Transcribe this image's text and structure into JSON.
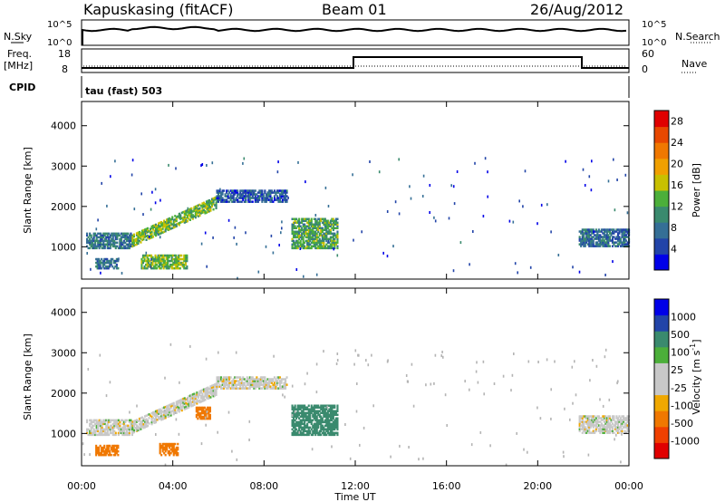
{
  "header": {
    "station": "Kapuskasing (fitACF)",
    "beam": "Beam 01",
    "date": "26/Aug/2012"
  },
  "aux": {
    "nsky_label": "N.Sky",
    "nsky_top_left": "10^5",
    "nsky_bottom_left": "10^0",
    "nsky_top_right": "10^5",
    "nsky_bottom_right": "10^0",
    "nsearch_label": "N.Search",
    "freq_label_1": "Freq.",
    "freq_label_2": "[MHz]",
    "freq_top": "18",
    "freq_bottom": "8",
    "nave_top": "60",
    "nave_bottom": "0",
    "nave_label": "Nave",
    "cpid_label": "CPID",
    "cpid_text": "tau (fast) 503"
  },
  "colors": {
    "power": [
      "#0000e8",
      "#2244a8",
      "#356f96",
      "#3a8a6e",
      "#4caf3a",
      "#c8c000",
      "#f0a000",
      "#f07800",
      "#e84800",
      "#e00000"
    ],
    "velocity": [
      "#e00000",
      "#f04000",
      "#f07800",
      "#f0a800",
      "#c8c8c8",
      "#c8c8c8",
      "#4caf3a",
      "#3a8a6e",
      "#2244a8",
      "#0000e8"
    ],
    "ground": "#b4b4b4"
  },
  "chart_data": [
    {
      "type": "heatmap",
      "name": "power",
      "ylabel": "Slant Range [km]",
      "xlim": [
        0,
        24
      ],
      "ylim": [
        200,
        4600
      ],
      "yticks": [
        "1000",
        "2000",
        "3000",
        "4000"
      ],
      "colorbar": {
        "label": "Power [dB]",
        "ticks": [
          "4",
          "8",
          "12",
          "16",
          "20",
          "24",
          "28"
        ],
        "range": [
          0,
          30
        ]
      },
      "regions": [
        {
          "t0": 0.2,
          "t1": 2.2,
          "r0": 950,
          "r1": 1350,
          "level": 8
        },
        {
          "t0": 2.2,
          "t1": 5.9,
          "r0": 1000,
          "r1": 2250,
          "level": 14,
          "slope": true
        },
        {
          "t0": 5.9,
          "t1": 9.0,
          "r0": 2100,
          "r1": 2400,
          "level": 6
        },
        {
          "t0": 9.2,
          "t1": 11.2,
          "r0": 950,
          "r1": 1700,
          "level": 12
        },
        {
          "t0": 0.6,
          "t1": 1.6,
          "r0": 450,
          "r1": 700,
          "level": 8
        },
        {
          "t0": 2.6,
          "t1": 4.6,
          "r0": 450,
          "r1": 800,
          "level": 14
        },
        {
          "t0": 21.8,
          "t1": 24.0,
          "r0": 1000,
          "r1": 1450,
          "level": 7
        }
      ]
    },
    {
      "type": "heatmap",
      "name": "velocity",
      "ylabel": "Slant Range [km]",
      "xlabel": "Time UT",
      "xlim": [
        0,
        24
      ],
      "ylim": [
        200,
        4600
      ],
      "xticks": [
        "00:00",
        "04:00",
        "08:00",
        "12:00",
        "16:00",
        "20:00",
        "00:00"
      ],
      "yticks": [
        "1000",
        "2000",
        "3000",
        "4000"
      ],
      "colorbar": {
        "label": "Velocity [m s",
        "label_sup": "-1",
        "label_end": "]",
        "ticks": [
          "1000",
          "500",
          "100",
          "25",
          "-25",
          "-100",
          "-500",
          "-1000"
        ]
      },
      "regions": [
        {
          "t0": 0.2,
          "t1": 2.2,
          "r0": 950,
          "r1": 1350,
          "v": 0
        },
        {
          "t0": 2.2,
          "t1": 5.9,
          "r0": 1000,
          "r1": 2250,
          "v": 0,
          "slope": true
        },
        {
          "t0": 5.9,
          "t1": 9.0,
          "r0": 2100,
          "r1": 2400,
          "v": 0
        },
        {
          "t0": 9.2,
          "t1": 11.2,
          "r0": 950,
          "r1": 1700,
          "v": 150
        },
        {
          "t0": 0.6,
          "t1": 1.6,
          "r0": 450,
          "r1": 700,
          "v": -300
        },
        {
          "t0": 3.4,
          "t1": 4.2,
          "r0": 450,
          "r1": 750,
          "v": -300
        },
        {
          "t0": 5.0,
          "t1": 5.6,
          "r0": 1350,
          "r1": 1650,
          "v": -200
        },
        {
          "t0": 21.8,
          "t1": 24.0,
          "r0": 1000,
          "r1": 1450,
          "v": 0
        }
      ]
    }
  ]
}
